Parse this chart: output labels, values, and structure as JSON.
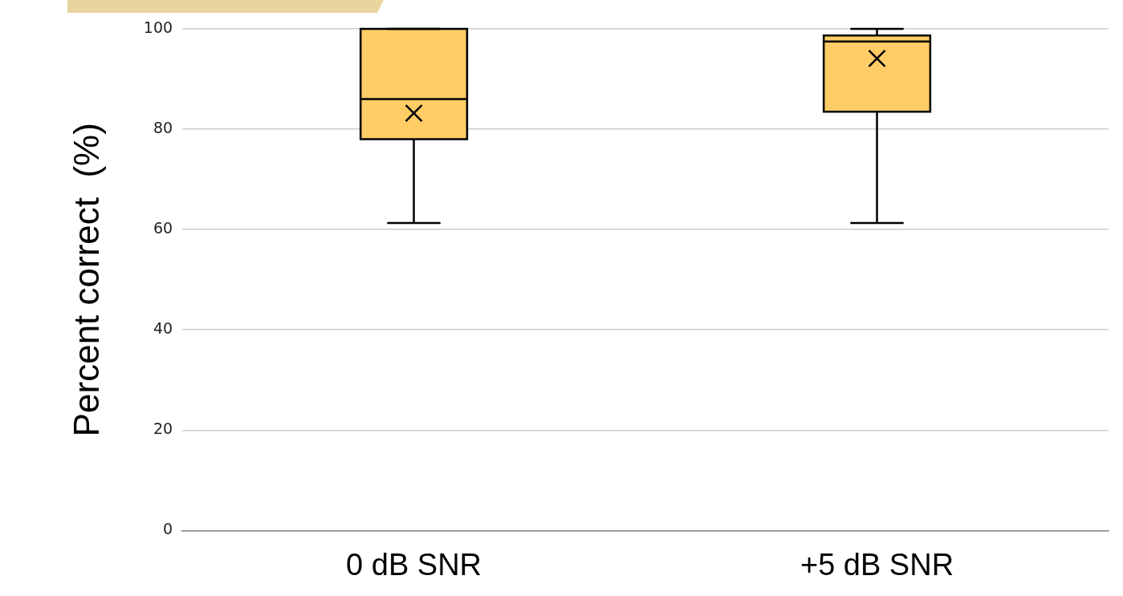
{
  "chart_data": {
    "type": "box",
    "ylabel": "Percent correct  (%)",
    "categories": [
      "0 dB SNR",
      "+5 dB SNR"
    ],
    "color": "#ffcc66",
    "boxes": [
      {
        "low": 61.3,
        "q1": 78,
        "median": 86,
        "q3": 100,
        "high": 100,
        "mean": 83.2
      },
      {
        "low": 61.3,
        "q1": 83.5,
        "median": 97.5,
        "q3": 98.7,
        "high": 100,
        "mean": 94.1
      }
    ],
    "ylim": [
      0,
      100
    ],
    "yticks": [
      0,
      20,
      40,
      60,
      80,
      100
    ],
    "grid": "y",
    "legend": false
  }
}
